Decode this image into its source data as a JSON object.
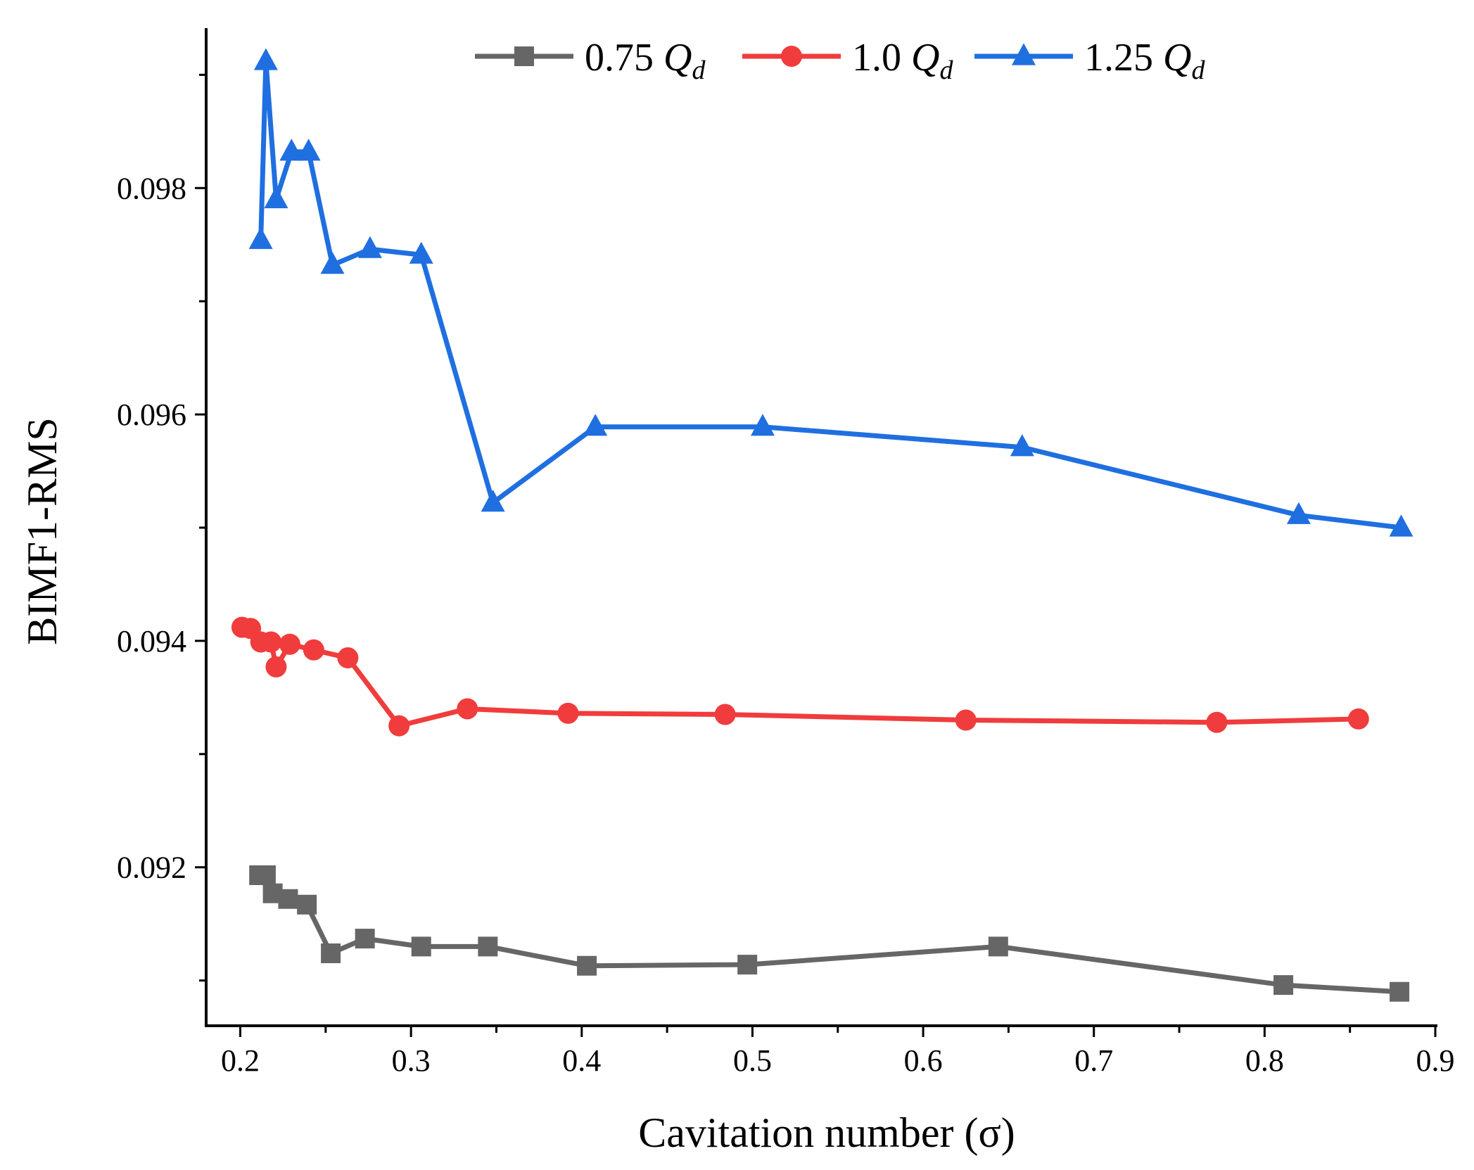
{
  "chart_data": {
    "type": "line",
    "title": "",
    "xlabel": "Cavitation number (σ)",
    "ylabel": "BIMF1-RMS",
    "xlim": [
      0.18,
      0.9
    ],
    "ylim": [
      0.0906,
      0.0994
    ],
    "x_ticks": [
      0.2,
      0.3,
      0.4,
      0.5,
      0.6,
      0.7,
      0.8,
      0.9
    ],
    "x_tick_labels": [
      "0.2",
      "0.3",
      "0.4",
      "0.5",
      "0.6",
      "0.7",
      "0.8",
      "0.9"
    ],
    "y_ticks": [
      0.092,
      0.094,
      0.096,
      0.098
    ],
    "y_tick_labels": [
      "0.092",
      "0.094",
      "0.096",
      "0.098"
    ],
    "grid": false,
    "legend_position": "top",
    "series": [
      {
        "name": "0.75 Qd",
        "label_main": "0.75 ",
        "label_q": "Q",
        "label_sub": "d",
        "color": "#666666",
        "marker": "square",
        "x": [
          0.211,
          0.215,
          0.219,
          0.228,
          0.239,
          0.253,
          0.273,
          0.306,
          0.345,
          0.403,
          0.497,
          0.644,
          0.811,
          0.879
        ],
        "y": [
          0.09193,
          0.09193,
          0.09177,
          0.09172,
          0.09167,
          0.09124,
          0.09137,
          0.0913,
          0.0913,
          0.09113,
          0.09114,
          0.0913,
          0.09096,
          0.0909
        ]
      },
      {
        "name": "1.0 Qd",
        "label_main": "1.0 ",
        "label_q": "Q",
        "label_sub": "d",
        "color": "#f03c3c",
        "marker": "circle",
        "x": [
          0.201,
          0.206,
          0.212,
          0.218,
          0.221,
          0.229,
          0.243,
          0.263,
          0.293,
          0.333,
          0.392,
          0.484,
          0.625,
          0.772,
          0.855
        ],
        "y": [
          0.09412,
          0.09411,
          0.09399,
          0.09399,
          0.09377,
          0.09397,
          0.09392,
          0.09385,
          0.09325,
          0.0934,
          0.09336,
          0.09335,
          0.0933,
          0.09328,
          0.09331
        ]
      },
      {
        "name": "1.25 Qd",
        "label_main": "1.25 ",
        "label_q": "Q",
        "label_sub": "d",
        "color": "#1f6fe0",
        "marker": "triangle",
        "x": [
          0.212,
          0.215,
          0.221,
          0.23,
          0.24,
          0.254,
          0.276,
          0.306,
          0.348,
          0.408,
          0.506,
          0.658,
          0.82,
          0.88
        ],
        "y": [
          0.09754,
          0.09912,
          0.0979,
          0.09832,
          0.09832,
          0.09732,
          0.09746,
          0.09741,
          0.09522,
          0.09589,
          0.09589,
          0.09571,
          0.09511,
          0.095
        ]
      }
    ]
  }
}
